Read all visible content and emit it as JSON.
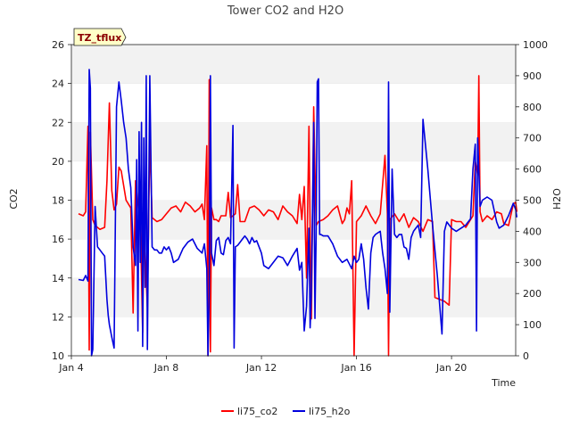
{
  "chart_data": {
    "type": "line",
    "title": "Tower CO2 and H2O",
    "xlabel": "Time",
    "ylabel_left": "CO2",
    "ylabel_right": "H2O",
    "badge": "TZ_tflux",
    "x_unit": "days since Jan 4",
    "x_ticks": [
      {
        "label": "Jan 4",
        "value": 0
      },
      {
        "label": "Jan 8",
        "value": 4
      },
      {
        "label": "Jan 12",
        "value": 8
      },
      {
        "label": "Jan 16",
        "value": 12
      },
      {
        "label": "Jan 20",
        "value": 16
      }
    ],
    "xlim": [
      0,
      18.7
    ],
    "ylim_left": [
      10,
      26
    ],
    "yticks_left": [
      10,
      12,
      14,
      16,
      18,
      20,
      22,
      24,
      26
    ],
    "ylim_right": [
      0,
      1000
    ],
    "yticks_right": [
      0,
      100,
      200,
      300,
      400,
      500,
      600,
      700,
      800,
      900,
      1000
    ],
    "grid": "horizontal alternating bands",
    "legend_position": "bottom-center",
    "series": [
      {
        "name": "li75_co2",
        "axis": "left",
        "color": "#ff0000",
        "points": [
          [
            0.3,
            17.3
          ],
          [
            0.5,
            17.2
          ],
          [
            0.6,
            17.4
          ],
          [
            0.7,
            21.8
          ],
          [
            0.75,
            10.3
          ],
          [
            0.8,
            21.5
          ],
          [
            0.9,
            17.0
          ],
          [
            1.0,
            16.7
          ],
          [
            1.2,
            16.5
          ],
          [
            1.4,
            16.6
          ],
          [
            1.5,
            19.0
          ],
          [
            1.6,
            23.0
          ],
          [
            1.7,
            18.5
          ],
          [
            1.8,
            17.5
          ],
          [
            1.9,
            17.8
          ],
          [
            2.0,
            19.7
          ],
          [
            2.1,
            19.5
          ],
          [
            2.3,
            18.0
          ],
          [
            2.5,
            17.6
          ],
          [
            2.6,
            12.2
          ],
          [
            2.7,
            19.0
          ],
          [
            2.8,
            17.8
          ],
          [
            2.9,
            17.2
          ],
          [
            3.0,
            11.2
          ],
          [
            3.05,
            17.2
          ],
          [
            3.1,
            15.5
          ],
          [
            3.2,
            12.5
          ],
          [
            3.3,
            21.2
          ],
          [
            3.4,
            17.1
          ],
          [
            3.6,
            16.9
          ],
          [
            3.8,
            17.0
          ],
          [
            4.0,
            17.3
          ],
          [
            4.2,
            17.6
          ],
          [
            4.4,
            17.7
          ],
          [
            4.6,
            17.4
          ],
          [
            4.8,
            17.9
          ],
          [
            5.0,
            17.7
          ],
          [
            5.2,
            17.4
          ],
          [
            5.4,
            17.6
          ],
          [
            5.5,
            17.8
          ],
          [
            5.6,
            17.0
          ],
          [
            5.7,
            20.8
          ],
          [
            5.75,
            10.0
          ],
          [
            5.8,
            24.2
          ],
          [
            5.85,
            10.2
          ],
          [
            5.9,
            17.6
          ],
          [
            6.0,
            17.0
          ],
          [
            6.1,
            17.0
          ],
          [
            6.2,
            16.9
          ],
          [
            6.3,
            17.2
          ],
          [
            6.5,
            17.2
          ],
          [
            6.6,
            18.4
          ],
          [
            6.7,
            17.1
          ],
          [
            6.9,
            17.3
          ],
          [
            7.0,
            18.8
          ],
          [
            7.1,
            16.9
          ],
          [
            7.3,
            16.9
          ],
          [
            7.5,
            17.6
          ],
          [
            7.7,
            17.7
          ],
          [
            7.9,
            17.5
          ],
          [
            8.1,
            17.2
          ],
          [
            8.3,
            17.5
          ],
          [
            8.5,
            17.4
          ],
          [
            8.7,
            17.0
          ],
          [
            8.9,
            17.7
          ],
          [
            9.1,
            17.4
          ],
          [
            9.3,
            17.2
          ],
          [
            9.5,
            16.8
          ],
          [
            9.6,
            18.3
          ],
          [
            9.7,
            17.0
          ],
          [
            9.8,
            18.7
          ],
          [
            9.9,
            14.0
          ],
          [
            10.0,
            21.8
          ],
          [
            10.05,
            16.5
          ],
          [
            10.1,
            11.9
          ],
          [
            10.2,
            22.8
          ],
          [
            10.3,
            16.7
          ],
          [
            10.4,
            16.9
          ],
          [
            10.6,
            17.0
          ],
          [
            10.8,
            17.2
          ],
          [
            11.0,
            17.5
          ],
          [
            11.2,
            17.7
          ],
          [
            11.4,
            16.8
          ],
          [
            11.5,
            17.0
          ],
          [
            11.6,
            17.6
          ],
          [
            11.7,
            17.3
          ],
          [
            11.8,
            19.0
          ],
          [
            11.9,
            10.0
          ],
          [
            12.0,
            16.9
          ],
          [
            12.2,
            17.2
          ],
          [
            12.4,
            17.7
          ],
          [
            12.6,
            17.2
          ],
          [
            12.8,
            16.8
          ],
          [
            13.0,
            17.3
          ],
          [
            13.2,
            20.3
          ],
          [
            13.3,
            17.3
          ],
          [
            13.35,
            10.0
          ],
          [
            13.4,
            17.0
          ],
          [
            13.6,
            17.3
          ],
          [
            13.8,
            16.9
          ],
          [
            14.0,
            17.3
          ],
          [
            14.2,
            16.6
          ],
          [
            14.4,
            17.1
          ],
          [
            14.6,
            16.9
          ],
          [
            14.8,
            16.4
          ],
          [
            15.0,
            17.0
          ],
          [
            15.2,
            16.9
          ],
          [
            15.3,
            13.0
          ],
          [
            15.5,
            12.9
          ],
          [
            15.7,
            12.8
          ],
          [
            15.9,
            12.6
          ],
          [
            16.0,
            17.0
          ],
          [
            16.2,
            16.9
          ],
          [
            16.4,
            16.9
          ],
          [
            16.6,
            16.6
          ],
          [
            16.8,
            17.0
          ],
          [
            16.9,
            17.2
          ],
          [
            17.0,
            20.0
          ],
          [
            17.1,
            19.3
          ],
          [
            17.15,
            24.4
          ],
          [
            17.2,
            17.4
          ],
          [
            17.3,
            16.9
          ],
          [
            17.5,
            17.2
          ],
          [
            17.7,
            17.0
          ],
          [
            17.9,
            17.4
          ],
          [
            18.1,
            17.3
          ],
          [
            18.2,
            16.8
          ],
          [
            18.4,
            16.7
          ],
          [
            18.6,
            17.8
          ],
          [
            18.7,
            17.9
          ],
          [
            18.75,
            17.4
          ]
        ]
      },
      {
        "name": "li75_h2o",
        "axis": "right",
        "color": "#0000dd",
        "points": [
          [
            0.3,
            245
          ],
          [
            0.5,
            242
          ],
          [
            0.6,
            258
          ],
          [
            0.7,
            240
          ],
          [
            0.75,
            920
          ],
          [
            0.8,
            860
          ],
          [
            0.85,
            0
          ],
          [
            0.9,
            20
          ],
          [
            1.0,
            480
          ],
          [
            1.1,
            350
          ],
          [
            1.2,
            340
          ],
          [
            1.3,
            330
          ],
          [
            1.4,
            320
          ],
          [
            1.5,
            180
          ],
          [
            1.55,
            130
          ],
          [
            1.6,
            100
          ],
          [
            1.7,
            60
          ],
          [
            1.8,
            25
          ],
          [
            1.9,
            800
          ],
          [
            2.0,
            880
          ],
          [
            2.1,
            820
          ],
          [
            2.2,
            750
          ],
          [
            2.3,
            700
          ],
          [
            2.4,
            600
          ],
          [
            2.5,
            540
          ],
          [
            2.6,
            350
          ],
          [
            2.7,
            290
          ],
          [
            2.75,
            630
          ],
          [
            2.8,
            80
          ],
          [
            2.85,
            720
          ],
          [
            2.9,
            300
          ],
          [
            2.95,
            750
          ],
          [
            3.0,
            30
          ],
          [
            3.05,
            700
          ],
          [
            3.1,
            220
          ],
          [
            3.15,
            900
          ],
          [
            3.2,
            20
          ],
          [
            3.3,
            900
          ],
          [
            3.4,
            350
          ],
          [
            3.5,
            340
          ],
          [
            3.6,
            340
          ],
          [
            3.7,
            330
          ],
          [
            3.8,
            330
          ],
          [
            3.9,
            350
          ],
          [
            4.0,
            340
          ],
          [
            4.1,
            350
          ],
          [
            4.2,
            330
          ],
          [
            4.3,
            300
          ],
          [
            4.5,
            310
          ],
          [
            4.7,
            345
          ],
          [
            4.9,
            365
          ],
          [
            5.1,
            375
          ],
          [
            5.3,
            345
          ],
          [
            5.5,
            330
          ],
          [
            5.6,
            360
          ],
          [
            5.7,
            280
          ],
          [
            5.75,
            0
          ],
          [
            5.8,
            200
          ],
          [
            5.85,
            900
          ],
          [
            5.9,
            330
          ],
          [
            6.0,
            290
          ],
          [
            6.1,
            370
          ],
          [
            6.2,
            380
          ],
          [
            6.3,
            330
          ],
          [
            6.4,
            325
          ],
          [
            6.5,
            370
          ],
          [
            6.6,
            380
          ],
          [
            6.7,
            360
          ],
          [
            6.8,
            740
          ],
          [
            6.85,
            25
          ],
          [
            6.9,
            350
          ],
          [
            7.0,
            355
          ],
          [
            7.1,
            365
          ],
          [
            7.2,
            375
          ],
          [
            7.3,
            385
          ],
          [
            7.4,
            375
          ],
          [
            7.5,
            360
          ],
          [
            7.6,
            380
          ],
          [
            7.7,
            365
          ],
          [
            7.8,
            370
          ],
          [
            7.9,
            350
          ],
          [
            8.0,
            330
          ],
          [
            8.1,
            290
          ],
          [
            8.3,
            280
          ],
          [
            8.5,
            300
          ],
          [
            8.7,
            320
          ],
          [
            8.9,
            315
          ],
          [
            9.1,
            290
          ],
          [
            9.3,
            320
          ],
          [
            9.5,
            345
          ],
          [
            9.6,
            275
          ],
          [
            9.7,
            300
          ],
          [
            9.8,
            80
          ],
          [
            9.9,
            160
          ],
          [
            10.0,
            410
          ],
          [
            10.05,
            90
          ],
          [
            10.1,
            200
          ],
          [
            10.2,
            750
          ],
          [
            10.25,
            120
          ],
          [
            10.3,
            380
          ],
          [
            10.35,
            880
          ],
          [
            10.4,
            890
          ],
          [
            10.45,
            390
          ],
          [
            10.5,
            390
          ],
          [
            10.6,
            385
          ],
          [
            10.8,
            385
          ],
          [
            11.0,
            360
          ],
          [
            11.2,
            320
          ],
          [
            11.4,
            300
          ],
          [
            11.6,
            310
          ],
          [
            11.8,
            280
          ],
          [
            11.9,
            320
          ],
          [
            12.0,
            300
          ],
          [
            12.1,
            310
          ],
          [
            12.2,
            360
          ],
          [
            12.3,
            310
          ],
          [
            12.4,
            220
          ],
          [
            12.5,
            150
          ],
          [
            12.6,
            330
          ],
          [
            12.7,
            380
          ],
          [
            12.8,
            390
          ],
          [
            12.9,
            395
          ],
          [
            13.0,
            400
          ],
          [
            13.1,
            330
          ],
          [
            13.2,
            280
          ],
          [
            13.3,
            200
          ],
          [
            13.35,
            880
          ],
          [
            13.4,
            140
          ],
          [
            13.5,
            600
          ],
          [
            13.6,
            390
          ],
          [
            13.7,
            380
          ],
          [
            13.8,
            390
          ],
          [
            13.9,
            390
          ],
          [
            14.0,
            350
          ],
          [
            14.1,
            345
          ],
          [
            14.2,
            310
          ],
          [
            14.3,
            380
          ],
          [
            14.4,
            400
          ],
          [
            14.5,
            410
          ],
          [
            14.6,
            420
          ],
          [
            14.7,
            380
          ],
          [
            14.8,
            760
          ],
          [
            15.0,
            600
          ],
          [
            15.2,
            420
          ],
          [
            15.4,
            260
          ],
          [
            15.6,
            70
          ],
          [
            15.7,
            400
          ],
          [
            15.8,
            430
          ],
          [
            16.0,
            410
          ],
          [
            16.2,
            400
          ],
          [
            16.4,
            410
          ],
          [
            16.6,
            420
          ],
          [
            16.8,
            440
          ],
          [
            16.9,
            600
          ],
          [
            17.0,
            680
          ],
          [
            17.05,
            80
          ],
          [
            17.1,
            700
          ],
          [
            17.2,
            480
          ],
          [
            17.3,
            500
          ],
          [
            17.5,
            510
          ],
          [
            17.7,
            500
          ],
          [
            17.9,
            430
          ],
          [
            18.0,
            410
          ],
          [
            18.2,
            420
          ],
          [
            18.4,
            450
          ],
          [
            18.6,
            490
          ],
          [
            18.7,
            470
          ],
          [
            18.75,
            445
          ]
        ]
      }
    ]
  }
}
